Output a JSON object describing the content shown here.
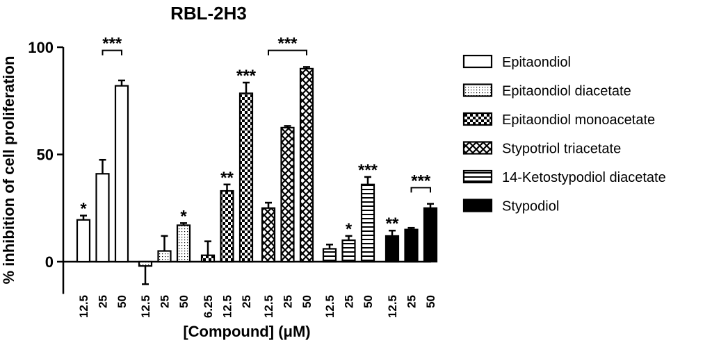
{
  "chart_data": {
    "type": "bar",
    "title": "RBL-2H3",
    "xlabel": "[Compound] (μM)",
    "ylabel": "% inhibition of cell proliferation",
    "ylim": [
      -15,
      100
    ],
    "yticks": [
      0,
      50,
      100
    ],
    "legend_position": "right",
    "grid": false,
    "series": [
      {
        "name": "Epitaondiol",
        "pattern": "open",
        "points": [
          {
            "dose": "12.5",
            "value": 19.5,
            "error": 2,
            "sig": "*"
          },
          {
            "dose": "25",
            "value": 41,
            "error": 6.5,
            "sig": ""
          },
          {
            "dose": "50",
            "value": 82,
            "error": 2.5,
            "sig": ""
          }
        ]
      },
      {
        "name": "Epitaondiol diacetate",
        "pattern": "dots",
        "points": [
          {
            "dose": "12.5",
            "value": -2,
            "error": 8.5,
            "sig": ""
          },
          {
            "dose": "25",
            "value": 5,
            "error": 7,
            "sig": ""
          },
          {
            "dose": "50",
            "value": 17,
            "error": 1,
            "sig": "*"
          }
        ]
      },
      {
        "name": "Epitaondiol monoacetate",
        "pattern": "checker",
        "points": [
          {
            "dose": "6.25",
            "value": 3,
            "error": 6.5,
            "sig": ""
          },
          {
            "dose": "12.5",
            "value": 33,
            "error": 3,
            "sig": "**"
          },
          {
            "dose": "25",
            "value": 78.5,
            "error": 5,
            "sig": "***"
          }
        ]
      },
      {
        "name": "Stypotriol triacetate",
        "pattern": "crosshatch",
        "points": [
          {
            "dose": "12.5",
            "value": 25,
            "error": 2.5,
            "sig": ""
          },
          {
            "dose": "25",
            "value": 62.5,
            "error": 0.8,
            "sig": ""
          },
          {
            "dose": "50",
            "value": 90,
            "error": 0.8,
            "sig": ""
          }
        ]
      },
      {
        "name": "14-Ketostypodiol diacetate",
        "pattern": "hstripes",
        "points": [
          {
            "dose": "12.5",
            "value": 6,
            "error": 2,
            "sig": ""
          },
          {
            "dose": "25",
            "value": 10,
            "error": 2,
            "sig": "*"
          },
          {
            "dose": "50",
            "value": 36,
            "error": 3.5,
            "sig": "***"
          }
        ]
      },
      {
        "name": "Stypodiol",
        "pattern": "solid",
        "points": [
          {
            "dose": "12.5",
            "value": 12,
            "error": 2.5,
            "sig": "**"
          },
          {
            "dose": "25",
            "value": 15,
            "error": 0.8,
            "sig": ""
          },
          {
            "dose": "50",
            "value": 25,
            "error": 2,
            "sig": ""
          }
        ]
      }
    ],
    "brackets": [
      {
        "series": 0,
        "from": 1,
        "to": 2,
        "label": "***",
        "value": 98.5
      },
      {
        "series": 3,
        "from": 0,
        "to": 2,
        "label": "***",
        "value": 98.5
      },
      {
        "series": 5,
        "from": 1,
        "to": 2,
        "label": "***",
        "value": 34.5
      }
    ]
  }
}
